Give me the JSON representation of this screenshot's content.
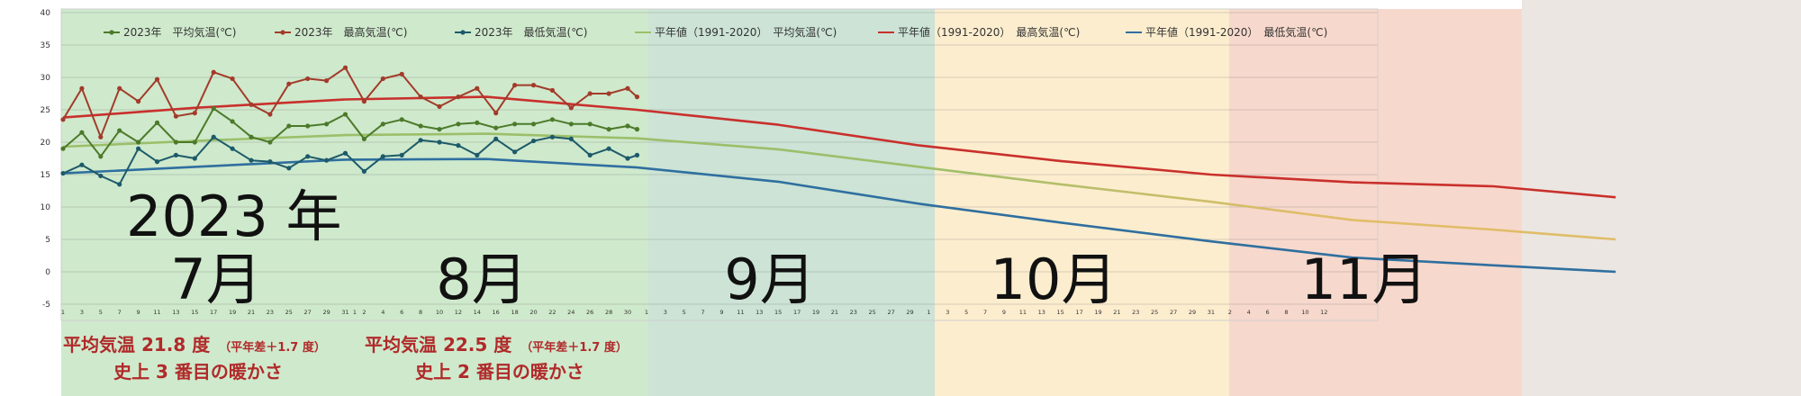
{
  "chart_data": {
    "type": "line",
    "ylim": [
      -5,
      40
    ],
    "yticks": [
      -5,
      0,
      5,
      10,
      15,
      20,
      25,
      30,
      35,
      40
    ],
    "grid": true,
    "legend_position": "top",
    "year_label": "2023 年",
    "months": [
      {
        "label": "7月",
        "days": 31,
        "band_color": "#cfe9cc"
      },
      {
        "label": "8月",
        "days": 31,
        "band_color": "#cfe9cc"
      },
      {
        "label": "9月",
        "days": 30,
        "band_color": "#cce3d6"
      },
      {
        "label": "10月",
        "days": 31,
        "band_color": "#fcedce"
      },
      {
        "label": "11月",
        "days": 30,
        "band_color": "#f7d8cc"
      }
    ],
    "x_tick_days": [
      {
        "month": "7月",
        "ticks": [
          "1",
          "3",
          "5",
          "7",
          "9",
          "11",
          "13",
          "15",
          "17",
          "19",
          "21",
          "23",
          "25",
          "27",
          "29",
          "31"
        ]
      },
      {
        "month": "8月",
        "ticks": [
          "1",
          "2",
          "4",
          "6",
          "8",
          "10",
          "12",
          "14",
          "16",
          "18",
          "20",
          "22",
          "24",
          "26",
          "28",
          "30"
        ]
      },
      {
        "month": "9月",
        "ticks": [
          "1",
          "3",
          "5",
          "7",
          "9",
          "11",
          "13",
          "15",
          "17",
          "19",
          "21",
          "23",
          "25",
          "27",
          "29"
        ]
      },
      {
        "month": "10月",
        "ticks": [
          "1",
          "3",
          "5",
          "7",
          "9",
          "11",
          "13",
          "15",
          "17",
          "19",
          "21",
          "23",
          "25",
          "27",
          "29",
          "31"
        ]
      },
      {
        "month": "11月",
        "ticks": [
          "2",
          "4",
          "6",
          "8",
          "10",
          "12"
        ]
      }
    ],
    "series": [
      {
        "name": "2023年　平均気温(℃)",
        "color": "#4c7a2a",
        "marker": true,
        "x": [
          1,
          3,
          5,
          7,
          9,
          11,
          13,
          15,
          17,
          19,
          21,
          23,
          25,
          27,
          29,
          31,
          33,
          35,
          37,
          39,
          41,
          43,
          45,
          47,
          49,
          51,
          53,
          55,
          57,
          59,
          61,
          62
        ],
        "values": [
          19.0,
          21.5,
          17.8,
          21.8,
          20.0,
          23.0,
          20.0,
          20.0,
          25.2,
          23.2,
          20.8,
          20.0,
          22.5,
          22.5,
          22.8,
          24.3,
          20.5,
          22.8,
          23.5,
          22.5,
          22.0,
          22.8,
          23.0,
          22.2,
          22.8,
          22.8,
          23.5,
          22.8,
          22.8,
          22.0,
          22.5,
          22.0
        ]
      },
      {
        "name": "2023年　最高気温(℃)",
        "color": "#a23b2a",
        "marker": true,
        "x": [
          1,
          3,
          5,
          7,
          9,
          11,
          13,
          15,
          17,
          19,
          21,
          23,
          25,
          27,
          29,
          31,
          33,
          35,
          37,
          39,
          41,
          43,
          45,
          47,
          49,
          51,
          53,
          55,
          57,
          59,
          61,
          62
        ],
        "values": [
          23.5,
          28.3,
          20.8,
          28.3,
          26.3,
          29.7,
          24.0,
          24.5,
          30.8,
          29.8,
          25.8,
          24.3,
          29.0,
          29.8,
          29.5,
          31.5,
          26.3,
          29.8,
          30.5,
          27.0,
          25.5,
          27.0,
          28.3,
          24.5,
          28.8,
          28.8,
          28.0,
          25.3,
          27.5,
          27.5,
          28.3,
          27.0
        ]
      },
      {
        "name": "2023年　最低気温(℃)",
        "color": "#1c5a6a",
        "marker": true,
        "x": [
          1,
          3,
          5,
          7,
          9,
          11,
          13,
          15,
          17,
          19,
          21,
          23,
          25,
          27,
          29,
          31,
          33,
          35,
          37,
          39,
          41,
          43,
          45,
          47,
          49,
          51,
          53,
          55,
          57,
          59,
          61,
          62
        ],
        "values": [
          15.2,
          16.5,
          14.8,
          13.5,
          19.0,
          17.0,
          18.0,
          17.5,
          20.8,
          19.0,
          17.2,
          17.0,
          16.0,
          17.8,
          17.2,
          18.3,
          15.5,
          17.8,
          18.0,
          20.3,
          20.0,
          19.5,
          18.0,
          20.5,
          18.5,
          20.2,
          20.8,
          20.5,
          18.0,
          19.0,
          17.5,
          18.0
        ]
      },
      {
        "name": "平年値（1991-2020）　平均気温(℃)",
        "color": "#9bbf6a",
        "marker": false,
        "fade_color": "#e0bd69",
        "x": [
          1,
          15,
          31,
          46,
          62,
          77,
          92,
          107,
          123,
          138,
          153,
          166
        ],
        "values": [
          19.3,
          20.2,
          21.1,
          21.3,
          20.6,
          18.9,
          16.2,
          13.5,
          10.8,
          8.0,
          6.5,
          5.0
        ]
      },
      {
        "name": "平年値（1991-2020）　最高気温(℃)",
        "color": "#c9302c",
        "marker": false,
        "x": [
          1,
          15,
          31,
          46,
          62,
          77,
          92,
          107,
          123,
          138,
          153,
          166
        ],
        "values": [
          23.8,
          25.3,
          26.6,
          27.0,
          25.0,
          22.7,
          19.5,
          17.1,
          15.0,
          13.8,
          13.2,
          11.5
        ]
      },
      {
        "name": "平年値（1991-2020）　最低気温(℃)",
        "color": "#2f6f9f",
        "marker": false,
        "x": [
          1,
          15,
          31,
          46,
          62,
          77,
          92,
          107,
          123,
          138,
          153,
          166
        ],
        "values": [
          15.2,
          16.2,
          17.3,
          17.4,
          16.1,
          13.9,
          10.5,
          7.6,
          4.7,
          2.2,
          1.0,
          0.0
        ]
      }
    ],
    "annotations": [
      {
        "line1": "平均気温 21.8 度",
        "note": "（平年差＋1.7 度）",
        "line2": "史上 3 番目の暖かさ"
      },
      {
        "line1": "平均気温 22.5 度",
        "note": "（平年差＋1.7 度）",
        "line2": "史上 2 番目の暖かさ"
      }
    ]
  }
}
